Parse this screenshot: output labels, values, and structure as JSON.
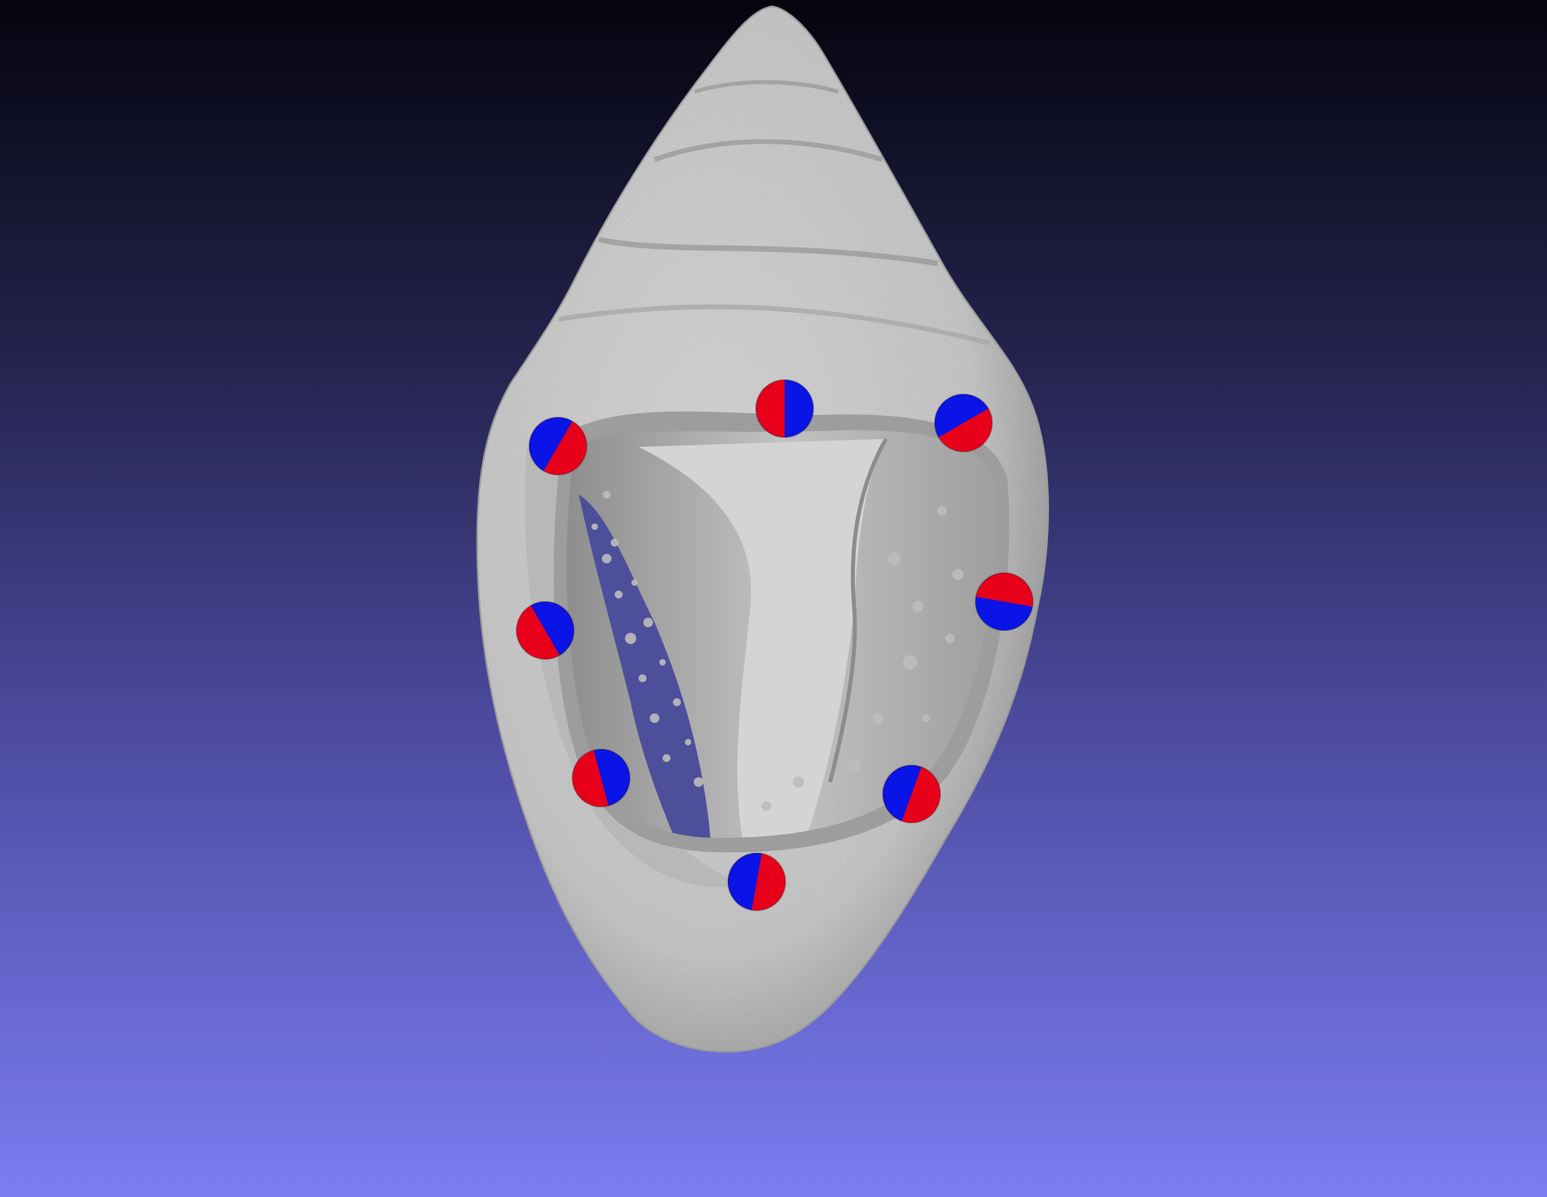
{
  "viewer": {
    "background_top_color": "#05050f",
    "background_bottom_color": "#7b7df2",
    "mesh_color": "#d9d9d9",
    "mesh_shadow_color": "#8f8f8f",
    "cavity_color": "#a2a2a2"
  },
  "landmarks": [
    {
      "id": 1,
      "top_color": "#e8001a",
      "bottom_color": "#0a14e6",
      "split_angle_deg": -90
    },
    {
      "id": 2,
      "top_color": "#0a14e6",
      "bottom_color": "#e8001a",
      "split_angle_deg": -60
    },
    {
      "id": 3,
      "top_color": "#0a14e6",
      "bottom_color": "#e8001a",
      "split_angle_deg": -30
    },
    {
      "id": 4,
      "top_color": "#e8001a",
      "bottom_color": "#0a14e6",
      "split_angle_deg": 10
    },
    {
      "id": 5,
      "top_color": "#0a14e6",
      "bottom_color": "#e8001a",
      "split_angle_deg": 60
    },
    {
      "id": 6,
      "top_color": "#0a14e6",
      "bottom_color": "#e8001a",
      "split_angle_deg": 75
    },
    {
      "id": 7,
      "top_color": "#0a14e6",
      "bottom_color": "#e8001a",
      "split_angle_deg": -70
    },
    {
      "id": 8,
      "top_color": "#0a14e6",
      "bottom_color": "#e8001a",
      "split_angle_deg": -80
    },
    {
      "id": 9,
      "top_color": "#0a14e6",
      "bottom_color": "#e8001a",
      "split_angle_deg": -150
    }
  ]
}
